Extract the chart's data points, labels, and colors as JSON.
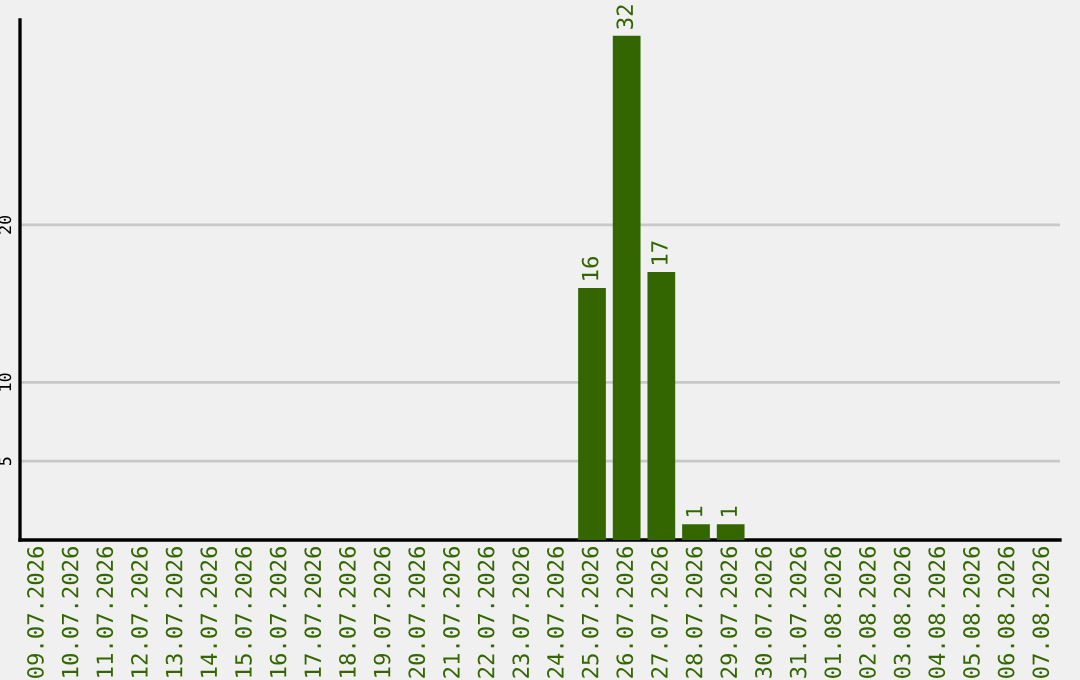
{
  "chart_data": {
    "type": "bar",
    "categories": [
      "09.07.2026",
      "10.07.2026",
      "11.07.2026",
      "12.07.2026",
      "13.07.2026",
      "14.07.2026",
      "15.07.2026",
      "16.07.2026",
      "17.07.2026",
      "18.07.2026",
      "19.07.2026",
      "20.07.2026",
      "21.07.2026",
      "22.07.2026",
      "23.07.2026",
      "24.07.2026",
      "25.07.2026",
      "26.07.2026",
      "27.07.2026",
      "28.07.2026",
      "29.07.2026",
      "30.07.2026",
      "31.07.2026",
      "01.08.2026",
      "02.08.2026",
      "03.08.2026",
      "04.08.2026",
      "05.08.2026",
      "06.08.2026",
      "07.08.2026"
    ],
    "values": [
      0,
      0,
      0,
      0,
      0,
      0,
      0,
      0,
      0,
      0,
      0,
      0,
      0,
      0,
      0,
      0,
      16,
      32,
      17,
      1,
      1,
      0,
      0,
      0,
      0,
      0,
      0,
      0,
      0,
      0
    ],
    "value_labels": [
      null,
      null,
      null,
      null,
      null,
      null,
      null,
      null,
      null,
      null,
      null,
      null,
      null,
      null,
      null,
      null,
      "16",
      "32",
      "17",
      "1",
      "1",
      null,
      null,
      null,
      null,
      null,
      null,
      null,
      null,
      null
    ],
    "color": "#336600",
    "ylim": [
      0,
      33
    ],
    "yticks": [
      5,
      10,
      20
    ],
    "grid": "y"
  }
}
